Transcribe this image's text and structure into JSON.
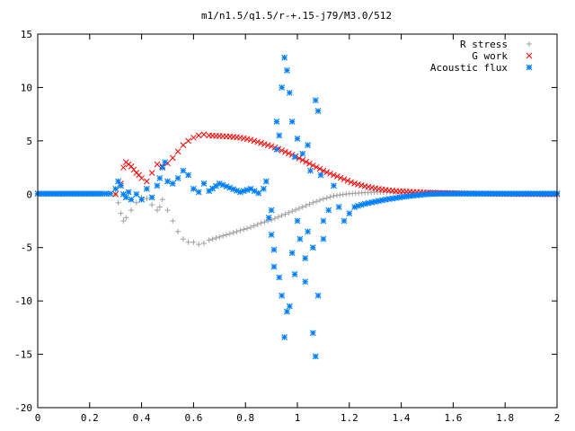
{
  "chart_data": {
    "type": "scatter",
    "title": "m1/n1.5/q1.5/r-+.15-j79/M3.0/512",
    "xlabel": "",
    "ylabel": "",
    "xlim": [
      0,
      2
    ],
    "ylim": [
      -20,
      15
    ],
    "xticks": [
      "0",
      "0.2",
      "0.4",
      "0.6",
      "0.8",
      "1",
      "1.2",
      "1.4",
      "1.6",
      "1.8",
      "2"
    ],
    "yticks": [
      "15",
      "10",
      "5",
      "0",
      "-5",
      "-10",
      "-15",
      "-20"
    ],
    "legend_position": "top-right",
    "grid": false,
    "series": [
      {
        "name": "R stress",
        "marker": "plus",
        "color": "#a0a0a0",
        "points": [
          [
            0,
            0
          ],
          [
            0.1,
            0
          ],
          [
            0.2,
            0
          ],
          [
            0.28,
            0.05
          ],
          [
            0.3,
            0
          ],
          [
            0.31,
            -0.8
          ],
          [
            0.32,
            -1.8
          ],
          [
            0.33,
            -2.5
          ],
          [
            0.34,
            -2.2
          ],
          [
            0.36,
            -1.5
          ],
          [
            0.38,
            -0.8
          ],
          [
            0.4,
            -0.3
          ],
          [
            0.42,
            -0.4
          ],
          [
            0.44,
            -1.0
          ],
          [
            0.46,
            -1.5
          ],
          [
            0.47,
            -1.2
          ],
          [
            0.48,
            -0.5
          ],
          [
            0.5,
            -1.5
          ],
          [
            0.52,
            -2.5
          ],
          [
            0.54,
            -3.5
          ],
          [
            0.56,
            -4.2
          ],
          [
            0.58,
            -4.5
          ],
          [
            0.6,
            -4.5
          ],
          [
            0.62,
            -4.7
          ],
          [
            0.64,
            -4.6
          ],
          [
            0.66,
            -4.3
          ],
          [
            0.7,
            -4.0
          ],
          [
            0.74,
            -3.7
          ],
          [
            0.78,
            -3.4
          ],
          [
            0.82,
            -3.1
          ],
          [
            0.86,
            -2.7
          ],
          [
            0.9,
            -2.4
          ],
          [
            0.94,
            -2.0
          ],
          [
            0.98,
            -1.6
          ],
          [
            1.02,
            -1.2
          ],
          [
            1.06,
            -0.8
          ],
          [
            1.1,
            -0.45
          ],
          [
            1.14,
            -0.15
          ],
          [
            1.2,
            0.05
          ],
          [
            1.26,
            0.15
          ],
          [
            1.32,
            0.2
          ],
          [
            1.38,
            0.2
          ],
          [
            1.44,
            0.15
          ],
          [
            1.5,
            0.12
          ],
          [
            1.6,
            0.1
          ],
          [
            1.7,
            0.1
          ],
          [
            1.8,
            0.05
          ],
          [
            1.9,
            0.03
          ],
          [
            2.0,
            0
          ]
        ]
      },
      {
        "name": "G work",
        "marker": "cross",
        "color": "#ff0000",
        "points": [
          [
            0.3,
            0
          ],
          [
            0.32,
            1.0
          ],
          [
            0.33,
            2.5
          ],
          [
            0.34,
            3.0
          ],
          [
            0.35,
            2.8
          ],
          [
            0.36,
            2.6
          ],
          [
            0.37,
            2.3
          ],
          [
            0.38,
            2.0
          ],
          [
            0.39,
            1.8
          ],
          [
            0.4,
            1.5
          ],
          [
            0.42,
            1.2
          ],
          [
            0.44,
            2.0
          ],
          [
            0.46,
            2.8
          ],
          [
            0.48,
            2.6
          ],
          [
            0.5,
            2.9
          ],
          [
            0.52,
            3.4
          ],
          [
            0.54,
            4.0
          ],
          [
            0.56,
            4.6
          ],
          [
            0.58,
            5.0
          ],
          [
            0.6,
            5.3
          ],
          [
            0.62,
            5.5
          ],
          [
            0.64,
            5.6
          ],
          [
            0.66,
            5.5
          ],
          [
            0.7,
            5.45
          ],
          [
            0.74,
            5.4
          ],
          [
            0.78,
            5.3
          ],
          [
            0.82,
            5.1
          ],
          [
            0.86,
            4.8
          ],
          [
            0.9,
            4.5
          ],
          [
            0.94,
            4.1
          ],
          [
            0.98,
            3.7
          ],
          [
            1.02,
            3.2
          ],
          [
            1.06,
            2.7
          ],
          [
            1.1,
            2.2
          ],
          [
            1.14,
            1.8
          ],
          [
            1.18,
            1.4
          ],
          [
            1.22,
            1.0
          ],
          [
            1.26,
            0.75
          ],
          [
            1.3,
            0.55
          ],
          [
            1.34,
            0.4
          ],
          [
            1.38,
            0.3
          ],
          [
            1.42,
            0.25
          ],
          [
            1.46,
            0.2
          ],
          [
            1.5,
            0.15
          ],
          [
            1.6,
            0.1
          ],
          [
            1.7,
            0.05
          ],
          [
            1.8,
            0.02
          ],
          [
            1.9,
            0.01
          ],
          [
            2.0,
            0
          ]
        ]
      },
      {
        "name": "Acoustic flux",
        "marker": "star",
        "color": "#0080ff",
        "points": [
          [
            0,
            0.05
          ],
          [
            0.05,
            0.05
          ],
          [
            0.1,
            0.05
          ],
          [
            0.15,
            0.05
          ],
          [
            0.2,
            0.05
          ],
          [
            0.25,
            0.05
          ],
          [
            0.28,
            0.05
          ],
          [
            0.3,
            0.5
          ],
          [
            0.31,
            1.2
          ],
          [
            0.32,
            0.8
          ],
          [
            0.33,
            0
          ],
          [
            0.34,
            -0.3
          ],
          [
            0.35,
            0.2
          ],
          [
            0.36,
            -0.5
          ],
          [
            0.38,
            0
          ],
          [
            0.4,
            -0.5
          ],
          [
            0.42,
            0.5
          ],
          [
            0.44,
            -0.3
          ],
          [
            0.46,
            0.8
          ],
          [
            0.47,
            1.5
          ],
          [
            0.48,
            2.5
          ],
          [
            0.49,
            3.0
          ],
          [
            0.5,
            1.2
          ],
          [
            0.52,
            1.0
          ],
          [
            0.54,
            1.5
          ],
          [
            0.56,
            2.2
          ],
          [
            0.58,
            1.8
          ],
          [
            0.6,
            0.5
          ],
          [
            0.62,
            0.2
          ],
          [
            0.64,
            1.0
          ],
          [
            0.66,
            0.3
          ],
          [
            0.7,
            1.0
          ],
          [
            0.74,
            0.6
          ],
          [
            0.78,
            0.2
          ],
          [
            0.82,
            0.5
          ],
          [
            0.85,
            0.1
          ],
          [
            0.87,
            0.5
          ],
          [
            0.88,
            1.2
          ],
          [
            0.89,
            -2.2
          ],
          [
            0.9,
            -1.5
          ],
          [
            0.9,
            -3.8
          ],
          [
            0.91,
            -6.8
          ],
          [
            0.91,
            -5.2
          ],
          [
            0.92,
            4.2
          ],
          [
            0.92,
            6.8
          ],
          [
            0.93,
            5.5
          ],
          [
            0.93,
            -7.8
          ],
          [
            0.94,
            -9.5
          ],
          [
            0.94,
            10.0
          ],
          [
            0.95,
            12.8
          ],
          [
            0.95,
            -13.4
          ],
          [
            0.96,
            -11.0
          ],
          [
            0.96,
            11.6
          ],
          [
            0.97,
            9.5
          ],
          [
            0.97,
            -10.5
          ],
          [
            0.98,
            6.8
          ],
          [
            0.98,
            -5.5
          ],
          [
            0.99,
            3.5
          ],
          [
            0.99,
            -7.5
          ],
          [
            1.0,
            5.2
          ],
          [
            1.0,
            -2.5
          ],
          [
            1.01,
            -4.2
          ],
          [
            1.02,
            3.8
          ],
          [
            1.03,
            -6.0
          ],
          [
            1.03,
            -8.2
          ],
          [
            1.04,
            4.6
          ],
          [
            1.04,
            -3.5
          ],
          [
            1.05,
            2.2
          ],
          [
            1.06,
            -5.0
          ],
          [
            1.06,
            -13.0
          ],
          [
            1.07,
            8.8
          ],
          [
            1.07,
            -15.2
          ],
          [
            1.08,
            7.8
          ],
          [
            1.08,
            -9.5
          ],
          [
            1.09,
            1.8
          ],
          [
            1.1,
            -2.5
          ],
          [
            1.1,
            -4.2
          ],
          [
            1.12,
            -1.5
          ],
          [
            1.14,
            0.8
          ],
          [
            1.16,
            -1.2
          ],
          [
            1.18,
            -2.5
          ],
          [
            1.2,
            -1.8
          ],
          [
            1.22,
            -1.2
          ],
          [
            1.26,
            -0.9
          ],
          [
            1.3,
            -0.7
          ],
          [
            1.34,
            -0.5
          ],
          [
            1.38,
            -0.35
          ],
          [
            1.42,
            -0.2
          ],
          [
            1.46,
            -0.1
          ],
          [
            1.5,
            0
          ],
          [
            1.55,
            0.05
          ],
          [
            1.6,
            0.05
          ],
          [
            1.7,
            0.05
          ],
          [
            1.8,
            0.05
          ],
          [
            1.9,
            0.05
          ],
          [
            2.0,
            0.05
          ]
        ]
      }
    ]
  }
}
